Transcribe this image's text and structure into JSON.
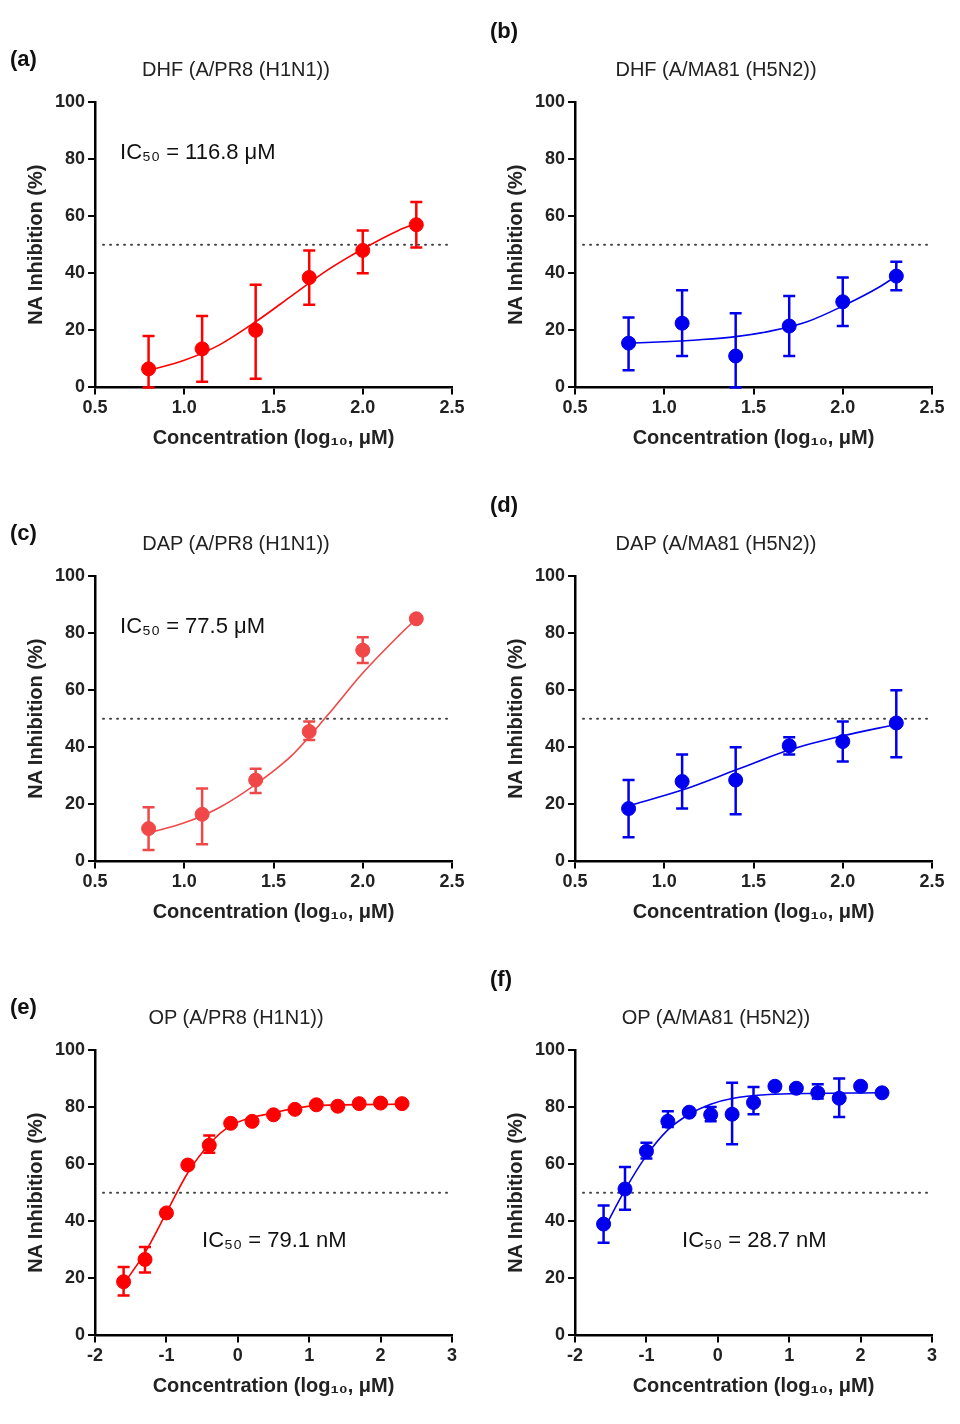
{
  "chart_data": [
    {
      "type": "scatter",
      "title": "DHF (A/PR8 (H1N1))",
      "xlabel": "Concentration (log₁₀, μM)",
      "ylabel": "NA Inhibition (%)",
      "annotations": [
        "(a)",
        "IC₅₀ = 116.8 μM"
      ],
      "xlim": [
        0.5,
        2.5
      ],
      "xticks": [
        {
          "value": 0.5,
          "label": "0.5"
        },
        {
          "value": 1,
          "label": "1.0"
        },
        {
          "value": 1.5,
          "label": "1.5"
        },
        {
          "value": 2,
          "label": "2.0"
        },
        {
          "value": 2.5,
          "label": "2.5"
        }
      ],
      "ylim": [
        0,
        100
      ],
      "yticks": [
        0,
        20,
        40,
        60,
        80,
        100
      ],
      "ref_lines": [
        {
          "axis": "y",
          "value": 50,
          "color": "#444444",
          "line_style": "dotted"
        }
      ],
      "series": [
        {
          "type": "scatter",
          "marker": "circle",
          "color": "#ff0000",
          "x": [
            0.8,
            1.1,
            1.4,
            1.7,
            2.0,
            2.3
          ],
          "values": [
            6.5,
            13.5,
            20,
            38.5,
            48,
            57
          ],
          "errors": [
            [
              0,
              18
            ],
            [
              2,
              25
            ],
            [
              3,
              36
            ],
            [
              29,
              48
            ],
            [
              40,
              55
            ],
            [
              49,
              65
            ]
          ]
        },
        {
          "type": "line",
          "color": "#ff0000",
          "x": [
            0.8,
            1.0,
            1.2,
            1.4,
            1.6,
            1.8,
            2.0,
            2.2,
            2.3
          ],
          "values": [
            6,
            9.5,
            15,
            23,
            32,
            41,
            48.5,
            55,
            57.5
          ]
        }
      ]
    },
    {
      "type": "scatter",
      "title": "DHF (A/MA81 (H5N2))",
      "xlabel": "Concentration (log₁₀, μM)",
      "ylabel": "NA Inhibition (%)",
      "annotations": [
        "(b)"
      ],
      "xlim": [
        0.5,
        2.5
      ],
      "xticks": [
        {
          "value": 0.5,
          "label": "0.5"
        },
        {
          "value": 1,
          "label": "1.0"
        },
        {
          "value": 1.5,
          "label": "1.5"
        },
        {
          "value": 2,
          "label": "2.0"
        },
        {
          "value": 2.5,
          "label": "2.5"
        }
      ],
      "ylim": [
        0,
        100
      ],
      "yticks": [
        0,
        20,
        40,
        60,
        80,
        100
      ],
      "ref_lines": [
        {
          "axis": "y",
          "value": 50,
          "color": "#444444",
          "line_style": "dotted"
        }
      ],
      "series": [
        {
          "type": "scatter",
          "marker": "circle",
          "color": "#0000ee",
          "x": [
            0.8,
            1.1,
            1.4,
            1.7,
            2.0,
            2.3
          ],
          "values": [
            15.5,
            22.5,
            11,
            21.5,
            30,
            39
          ],
          "errors": [
            [
              6,
              24.5
            ],
            [
              11,
              34
            ],
            [
              0,
              26
            ],
            [
              11,
              32
            ],
            [
              21.5,
              38.5
            ],
            [
              34,
              44
            ]
          ]
        },
        {
          "type": "line",
          "color": "#0000ee",
          "x": [
            0.8,
            1.0,
            1.2,
            1.4,
            1.6,
            1.8,
            2.0,
            2.2,
            2.3
          ],
          "values": [
            15.5,
            16,
            16.7,
            17.8,
            19.8,
            23,
            28.5,
            35,
            39
          ]
        }
      ]
    },
    {
      "type": "scatter",
      "title": "DAP (A/PR8 (H1N1))",
      "xlabel": "Concentration (log₁₀, μM)",
      "ylabel": "NA Inhibition (%)",
      "annotations": [
        "(c)",
        "IC₅₀ = 77.5 μM"
      ],
      "xlim": [
        0.5,
        2.5
      ],
      "xticks": [
        {
          "value": 0.5,
          "label": "0.5"
        },
        {
          "value": 1,
          "label": "1.0"
        },
        {
          "value": 1.5,
          "label": "1.5"
        },
        {
          "value": 2,
          "label": "2.0"
        },
        {
          "value": 2.5,
          "label": "2.5"
        }
      ],
      "ylim": [
        0,
        100
      ],
      "yticks": [
        0,
        20,
        40,
        60,
        80,
        100
      ],
      "ref_lines": [
        {
          "axis": "y",
          "value": 50,
          "color": "#444444",
          "line_style": "dotted"
        }
      ],
      "series": [
        {
          "type": "scatter",
          "marker": "circle",
          "color": "#f04848",
          "x": [
            0.8,
            1.1,
            1.4,
            1.7,
            2.0,
            2.3
          ],
          "values": [
            11.5,
            16.5,
            28.5,
            45.5,
            74,
            85
          ],
          "errors": [
            [
              4,
              19
            ],
            [
              6,
              25.5
            ],
            [
              24,
              32.5
            ],
            [
              42.5,
              49
            ],
            [
              69.5,
              78.5
            ],
            null
          ]
        },
        {
          "type": "line",
          "color": "#f04848",
          "x": [
            0.8,
            1.0,
            1.2,
            1.4,
            1.6,
            1.8,
            2.0,
            2.2,
            2.3
          ],
          "values": [
            10,
            13.5,
            19,
            27,
            37,
            51,
            66,
            79,
            85
          ]
        }
      ]
    },
    {
      "type": "scatter",
      "title": "DAP (A/MA81 (H5N2))",
      "xlabel": "Concentration (log₁₀, μM)",
      "ylabel": "NA Inhibition (%)",
      "annotations": [
        "(d)"
      ],
      "xlim": [
        0.5,
        2.5
      ],
      "xticks": [
        {
          "value": 0.5,
          "label": "0.5"
        },
        {
          "value": 1,
          "label": "1.0"
        },
        {
          "value": 1.5,
          "label": "1.5"
        },
        {
          "value": 2,
          "label": "2.0"
        },
        {
          "value": 2.5,
          "label": "2.5"
        }
      ],
      "ylim": [
        0,
        100
      ],
      "yticks": [
        0,
        20,
        40,
        60,
        80,
        100
      ],
      "ref_lines": [
        {
          "axis": "y",
          "value": 50,
          "color": "#444444",
          "line_style": "dotted"
        }
      ],
      "series": [
        {
          "type": "scatter",
          "marker": "circle",
          "color": "#0000ee",
          "x": [
            0.8,
            1.1,
            1.4,
            1.7,
            2.0,
            2.3
          ],
          "values": [
            18.5,
            28,
            28.5,
            40.5,
            42,
            48.5
          ],
          "errors": [
            [
              8.5,
              28.5
            ],
            [
              18.5,
              37.5
            ],
            [
              16.5,
              40
            ],
            [
              37.5,
              43.5
            ],
            [
              35,
              49
            ],
            [
              36.5,
              60
            ]
          ]
        },
        {
          "type": "line",
          "color": "#0000ee",
          "x": [
            0.8,
            1.1,
            1.4,
            1.7,
            2.0,
            2.3
          ],
          "values": [
            19.5,
            25,
            32,
            39,
            44,
            48
          ]
        }
      ]
    },
    {
      "type": "scatter",
      "title": "OP (A/PR8 (H1N1))",
      "xlabel": "Concentration (log₁₀, μM)",
      "ylabel": "NA Inhibition (%)",
      "annotations": [
        "(e)",
        "IC₅₀ = 79.1 nM"
      ],
      "xlim": [
        -2,
        3
      ],
      "xticks": [
        -2,
        -1,
        0,
        1,
        2,
        3
      ],
      "ylim": [
        0,
        100
      ],
      "yticks": [
        0,
        20,
        40,
        60,
        80,
        100
      ],
      "ref_lines": [
        {
          "axis": "y",
          "value": 50,
          "color": "#444444",
          "line_style": "dotted"
        }
      ],
      "series": [
        {
          "type": "scatter",
          "marker": "circle",
          "color": "#ff0000",
          "x": [
            -1.6,
            -1.3,
            -1.0,
            -0.7,
            -0.4,
            -0.1,
            0.2,
            0.5,
            0.8,
            1.1,
            1.4,
            1.7,
            2.0,
            2.3
          ],
          "values": [
            18.8,
            26.6,
            42.9,
            59.7,
            66.6,
            74.3,
            75,
            77.3,
            79.2,
            80.8,
            80.3,
            81.2,
            81.4,
            81.2
          ],
          "errors": [
            [
              14,
              24
            ],
            [
              22,
              31
            ],
            null,
            null,
            [
              64,
              70
            ],
            null,
            null,
            null,
            null,
            null,
            null,
            null,
            null,
            null
          ]
        },
        {
          "type": "line",
          "color": "#ff0000",
          "x": [
            -1.6,
            -1.3,
            -1.0,
            -0.7,
            -0.4,
            -0.1,
            0.5,
            1.1,
            2.3
          ],
          "values": [
            18,
            29,
            43,
            57,
            67,
            73.5,
            78,
            80.5,
            81
          ]
        }
      ]
    },
    {
      "type": "scatter",
      "title": "OP (A/MA81 (H5N2))",
      "xlabel": "Concentration (log₁₀, μM)",
      "ylabel": "NA Inhibition (%)",
      "annotations": [
        "(f)",
        "IC₅₀ = 28.7 nM"
      ],
      "xlim": [
        -2,
        3
      ],
      "xticks": [
        -2,
        -1,
        0,
        1,
        2,
        3
      ],
      "ylim": [
        0,
        100
      ],
      "yticks": [
        0,
        20,
        40,
        60,
        80,
        100
      ],
      "ref_lines": [
        {
          "axis": "y",
          "value": 50,
          "color": "#444444",
          "line_style": "dotted"
        }
      ],
      "series": [
        {
          "type": "scatter",
          "marker": "circle",
          "color": "#0000ee",
          "x": [
            -1.6,
            -1.3,
            -1.0,
            -0.7,
            -0.4,
            -0.1,
            0.2,
            0.5,
            0.8,
            1.1,
            1.4,
            1.7,
            2.0,
            2.3
          ],
          "values": [
            39,
            51.3,
            64.5,
            75,
            78.2,
            77.3,
            77.5,
            81.6,
            87.3,
            86.6,
            85,
            83.1,
            87.3,
            85
          ],
          "errors": [
            [
              32.5,
              45.5
            ],
            [
              44,
              59
            ],
            [
              62,
              67.5
            ],
            [
              73,
              78.5
            ],
            null,
            [
              75,
              80
            ],
            [
              67,
              88.5
            ],
            [
              77.5,
              87
            ],
            null,
            null,
            [
              83,
              88
            ],
            [
              76.5,
              90
            ],
            null,
            null
          ]
        },
        {
          "type": "line",
          "color": "#0000ee",
          "x": [
            -1.6,
            -1.3,
            -1.0,
            -0.7,
            -0.4,
            -0.1,
            0.2,
            0.8,
            2.3
          ],
          "values": [
            37,
            51,
            63,
            72,
            77.5,
            81,
            83,
            84.5,
            85
          ]
        }
      ]
    }
  ]
}
